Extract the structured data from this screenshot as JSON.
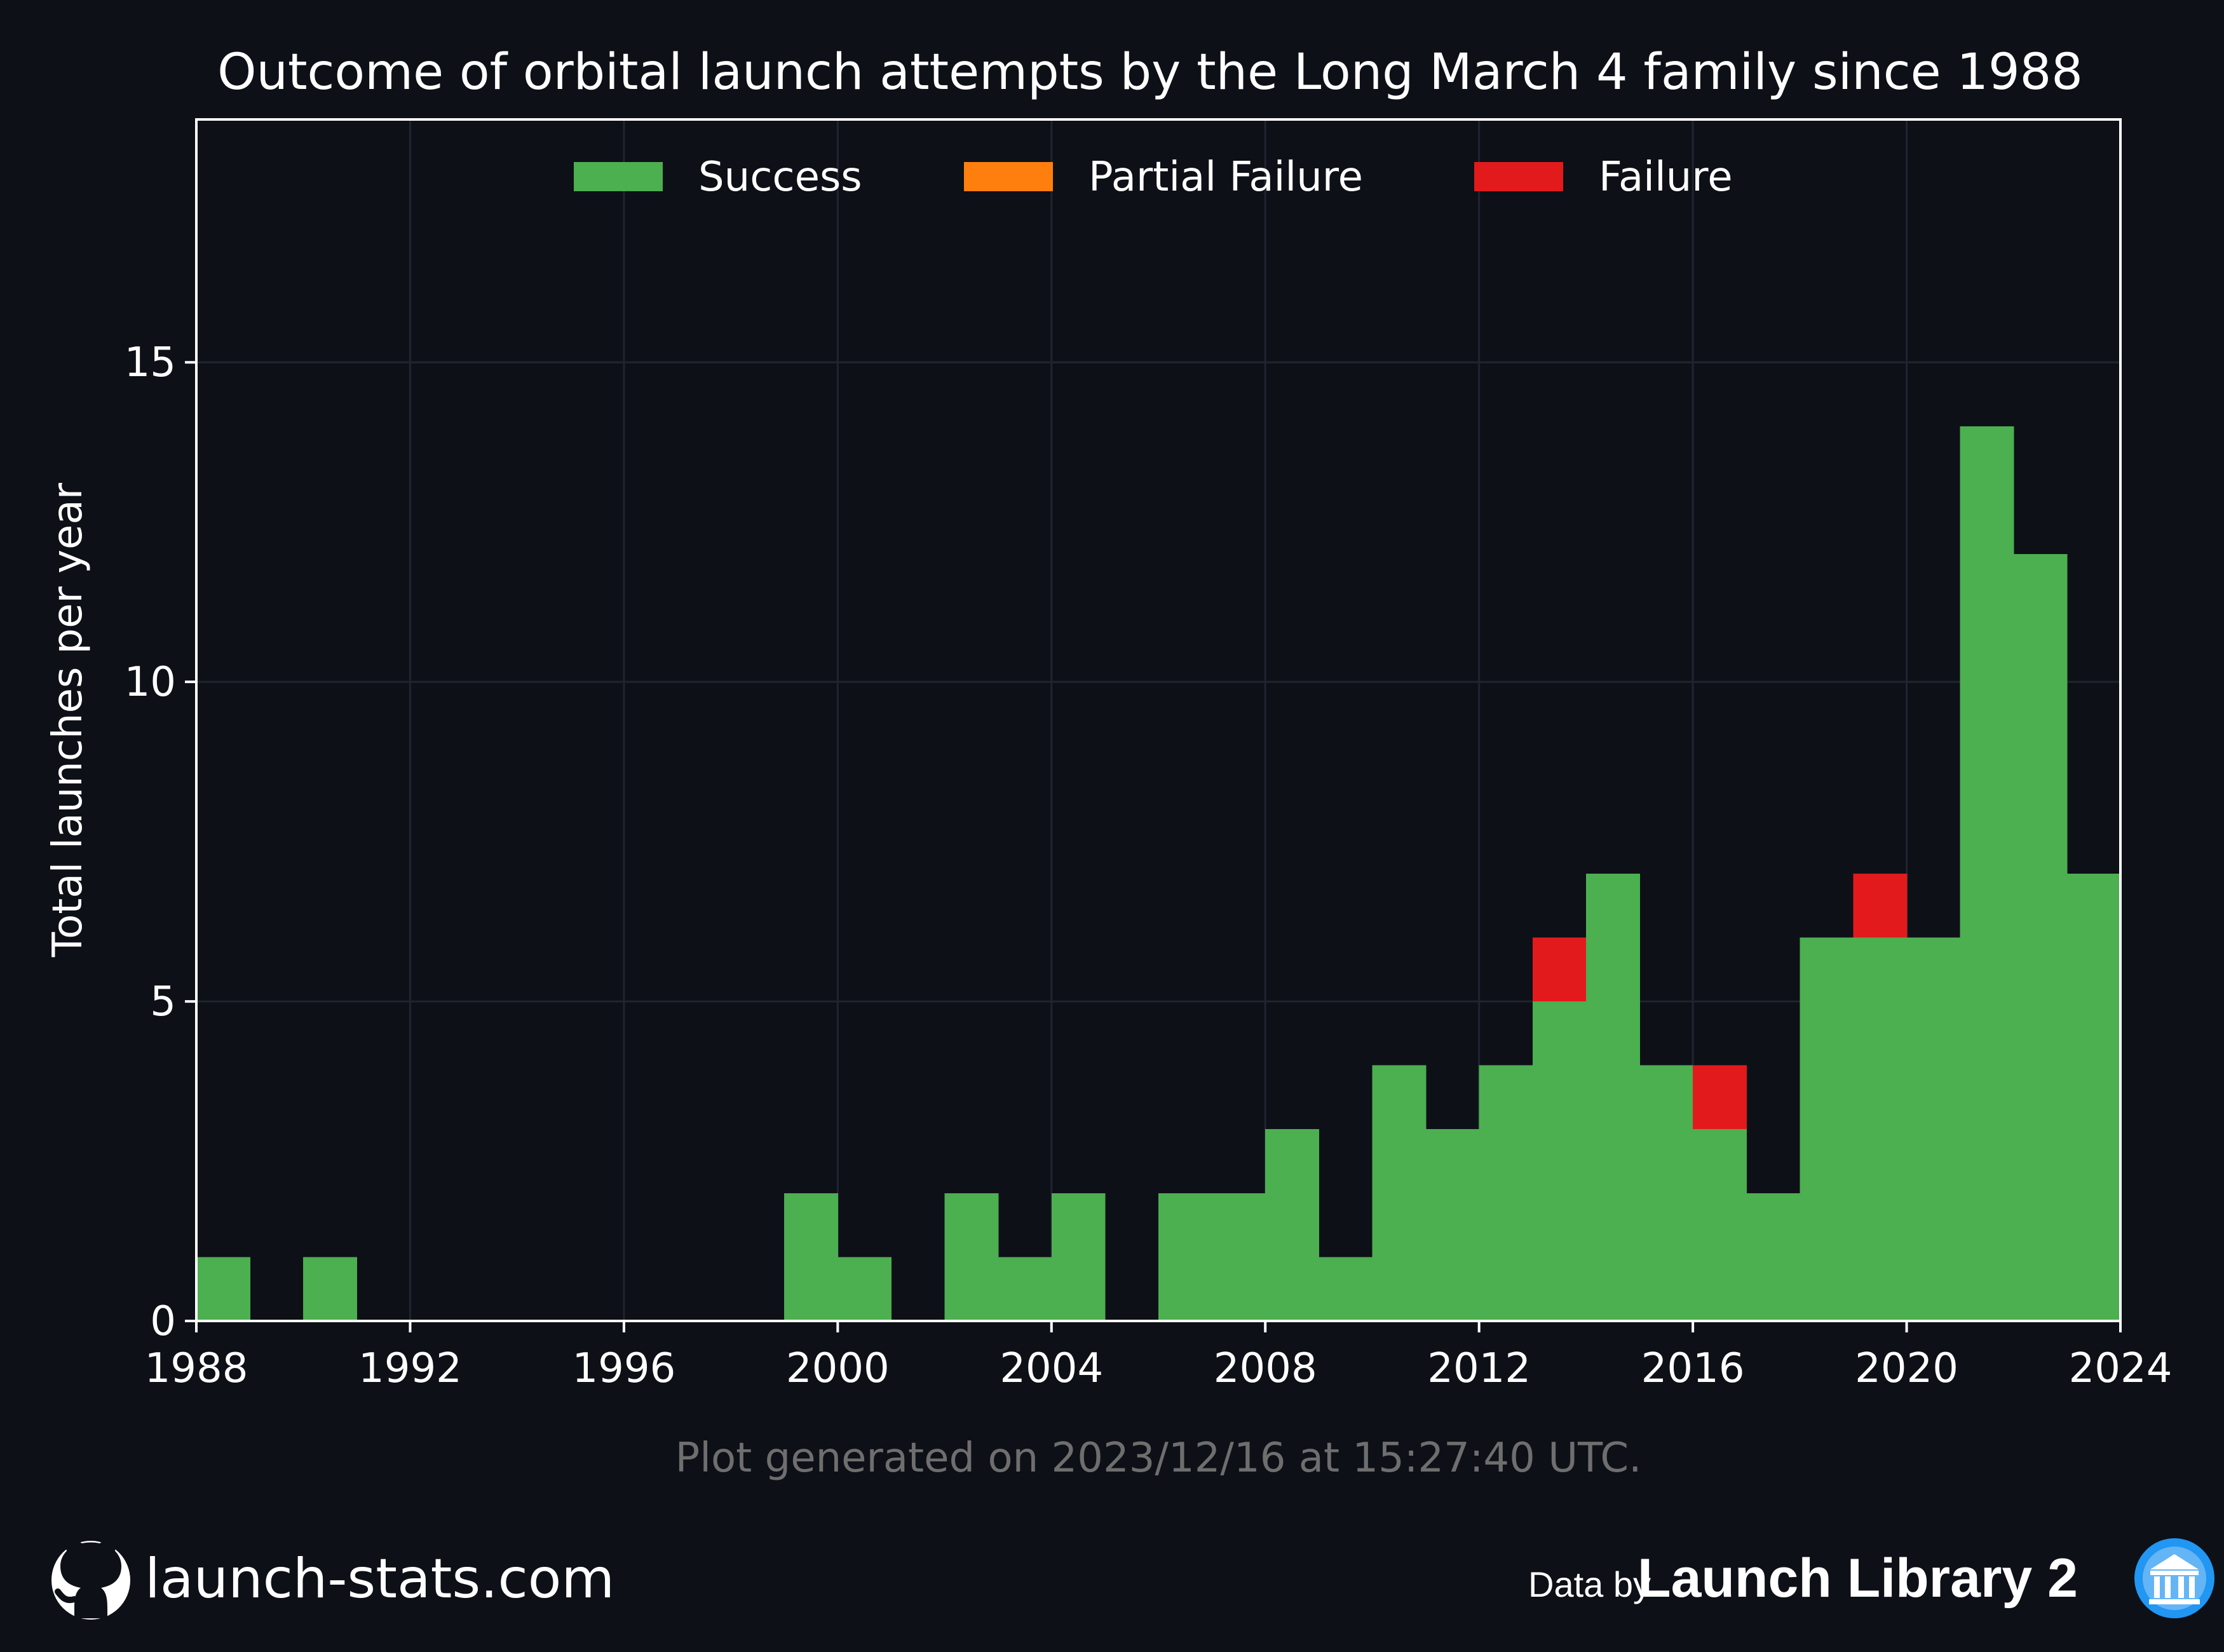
{
  "chart_data": {
    "type": "bar",
    "stacked": true,
    "title": "Outcome of orbital launch attempts by the Long March 4 family since 1988",
    "xlabel": "",
    "ylabel": "Total launches per year",
    "xlim": [
      1988,
      2024
    ],
    "ylim": [
      0,
      18.8
    ],
    "grid": true,
    "legend_position": "top-center",
    "xticks": [
      1988,
      1992,
      1996,
      2000,
      2004,
      2008,
      2012,
      2016,
      2020,
      2024
    ],
    "yticks": [
      0,
      5,
      10,
      15
    ],
    "years": [
      1988,
      1989,
      1990,
      1991,
      1992,
      1993,
      1994,
      1995,
      1996,
      1997,
      1998,
      1999,
      2000,
      2001,
      2002,
      2003,
      2004,
      2005,
      2006,
      2007,
      2008,
      2009,
      2010,
      2011,
      2012,
      2013,
      2014,
      2015,
      2016,
      2017,
      2018,
      2019,
      2020,
      2021,
      2022,
      2023
    ],
    "series": [
      {
        "name": "Success",
        "color": "#4caf50",
        "values": [
          1,
          0,
          1,
          0,
          0,
          0,
          0,
          0,
          0,
          0,
          0,
          2,
          1,
          0,
          2,
          1,
          2,
          0,
          2,
          2,
          3,
          1,
          4,
          3,
          4,
          5,
          7,
          4,
          3,
          2,
          6,
          6,
          6,
          14,
          12,
          7
        ]
      },
      {
        "name": "Partial Failure",
        "color": "#ff7f0e",
        "values": [
          0,
          0,
          0,
          0,
          0,
          0,
          0,
          0,
          0,
          0,
          0,
          0,
          0,
          0,
          0,
          0,
          0,
          0,
          0,
          0,
          0,
          0,
          0,
          0,
          0,
          0,
          0,
          0,
          0,
          0,
          0,
          0,
          0,
          0,
          0,
          0
        ]
      },
      {
        "name": "Failure",
        "color": "#e31a1c",
        "values": [
          0,
          0,
          0,
          0,
          0,
          0,
          0,
          0,
          0,
          0,
          0,
          0,
          0,
          0,
          0,
          0,
          0,
          0,
          0,
          0,
          0,
          0,
          0,
          0,
          0,
          1,
          0,
          0,
          1,
          0,
          0,
          1,
          0,
          0,
          0,
          0
        ]
      }
    ]
  },
  "footer": {
    "generated": "Plot generated on 2023/12/16 at 15:27:40 UTC.",
    "site": "launch-stats.com",
    "site_icon": "github-icon",
    "data_by": "Data by",
    "source": "Launch Library 2",
    "source_icon": "launch-library-icon"
  }
}
